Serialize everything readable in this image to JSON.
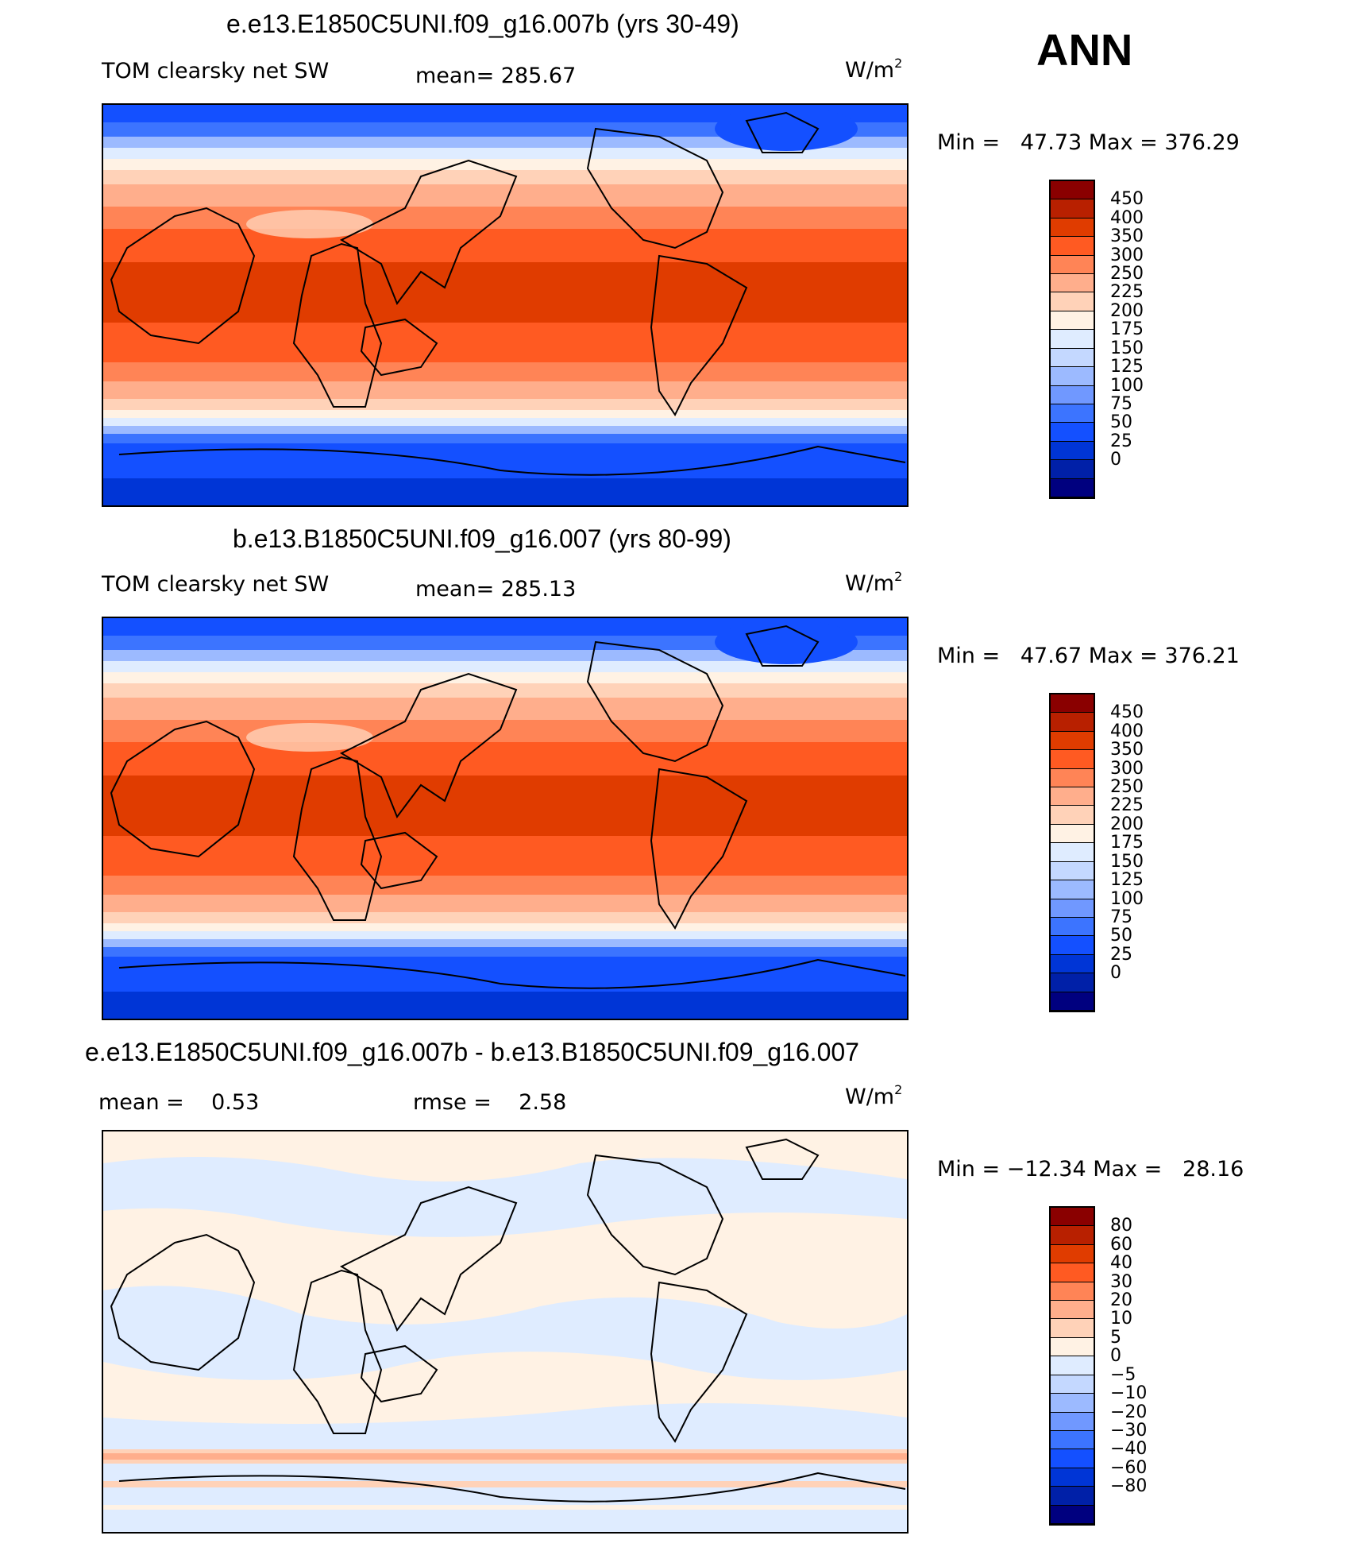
{
  "season": "ANN",
  "units": "W/m",
  "units_exp": "2",
  "colors": {
    "abs": [
      "#00007f",
      "#0020a8",
      "#0035d6",
      "#1450ff",
      "#3c74ff",
      "#7098ff",
      "#9cbaff",
      "#c4d8ff",
      "#dfecff",
      "#fff2e4",
      "#ffd2b8",
      "#ffae8c",
      "#ff8456",
      "#ff5a22",
      "#e03c00",
      "#b82000",
      "#8a0000"
    ],
    "diff": [
      "#00007f",
      "#0020a8",
      "#0035d6",
      "#1450ff",
      "#3c74ff",
      "#7098ff",
      "#9cbaff",
      "#c4d8ff",
      "#dfecff",
      "#fff2e4",
      "#ffd2b8",
      "#ffae8c",
      "#ff8456",
      "#ff5a22",
      "#e03c00",
      "#b82000",
      "#8a0000"
    ]
  },
  "panels": [
    {
      "title": "e.e13.E1850C5UNI.f09_g16.007b (yrs 30-49)",
      "var_label": "TOM clearsky net SW",
      "mean_label": "mean=",
      "mean_value": "285.67",
      "min_label": "Min =",
      "min_value": "47.73",
      "max_label": "Max =",
      "max_value": "376.29",
      "colorbar_levels": [
        "450",
        "400",
        "350",
        "300",
        "250",
        "225",
        "200",
        "175",
        "150",
        "125",
        "100",
        "75",
        "50",
        "25",
        "0"
      ]
    },
    {
      "title": "b.e13.B1850C5UNI.f09_g16.007 (yrs 80-99)",
      "var_label": "TOM clearsky net SW",
      "mean_label": "mean=",
      "mean_value": "285.13",
      "min_label": "Min =",
      "min_value": "47.67",
      "max_label": "Max =",
      "max_value": "376.21",
      "colorbar_levels": [
        "450",
        "400",
        "350",
        "300",
        "250",
        "225",
        "200",
        "175",
        "150",
        "125",
        "100",
        "75",
        "50",
        "25",
        "0"
      ]
    },
    {
      "title": "e.e13.E1850C5UNI.f09_g16.007b - b.e13.B1850C5UNI.f09_g16.007",
      "mean_label": "mean =",
      "mean_value": "0.53",
      "rmse_label": "rmse =",
      "rmse_value": "2.58",
      "min_label": "Min =",
      "min_value": "−12.34",
      "max_label": "Max =",
      "max_value": "28.16",
      "colorbar_levels": [
        "80",
        "60",
        "40",
        "30",
        "20",
        "10",
        "5",
        "0",
        "−5",
        "−10",
        "−20",
        "−30",
        "−40",
        "−60",
        "−80"
      ]
    }
  ],
  "chart_data": {
    "type": "heatmap",
    "projection": "cylindrical equidistant, centered 180",
    "panels": [
      {
        "title": "e.e13.E1850C5UNI.f09_g16.007b (yrs 30-49)",
        "mean": 285.67,
        "min": 47.73,
        "max": 376.29,
        "units": "W/m2",
        "levels": [
          0,
          25,
          50,
          75,
          100,
          125,
          150,
          175,
          200,
          225,
          250,
          300,
          350,
          400,
          450
        ]
      },
      {
        "title": "b.e13.B1850C5UNI.f09_g16.007 (yrs 80-99)",
        "mean": 285.13,
        "min": 47.67,
        "max": 376.21,
        "units": "W/m2",
        "levels": [
          0,
          25,
          50,
          75,
          100,
          125,
          150,
          175,
          200,
          225,
          250,
          300,
          350,
          400,
          450
        ]
      },
      {
        "title": "e.e13.E1850C5UNI.f09_g16.007b - b.e13.B1850C5UNI.f09_g16.007",
        "mean": 0.53,
        "rmse": 2.58,
        "min": -12.34,
        "max": 28.16,
        "units": "W/m2",
        "levels": [
          -80,
          -60,
          -40,
          -30,
          -20,
          -10,
          -5,
          0,
          5,
          10,
          20,
          30,
          40,
          60,
          80
        ]
      }
    ]
  }
}
